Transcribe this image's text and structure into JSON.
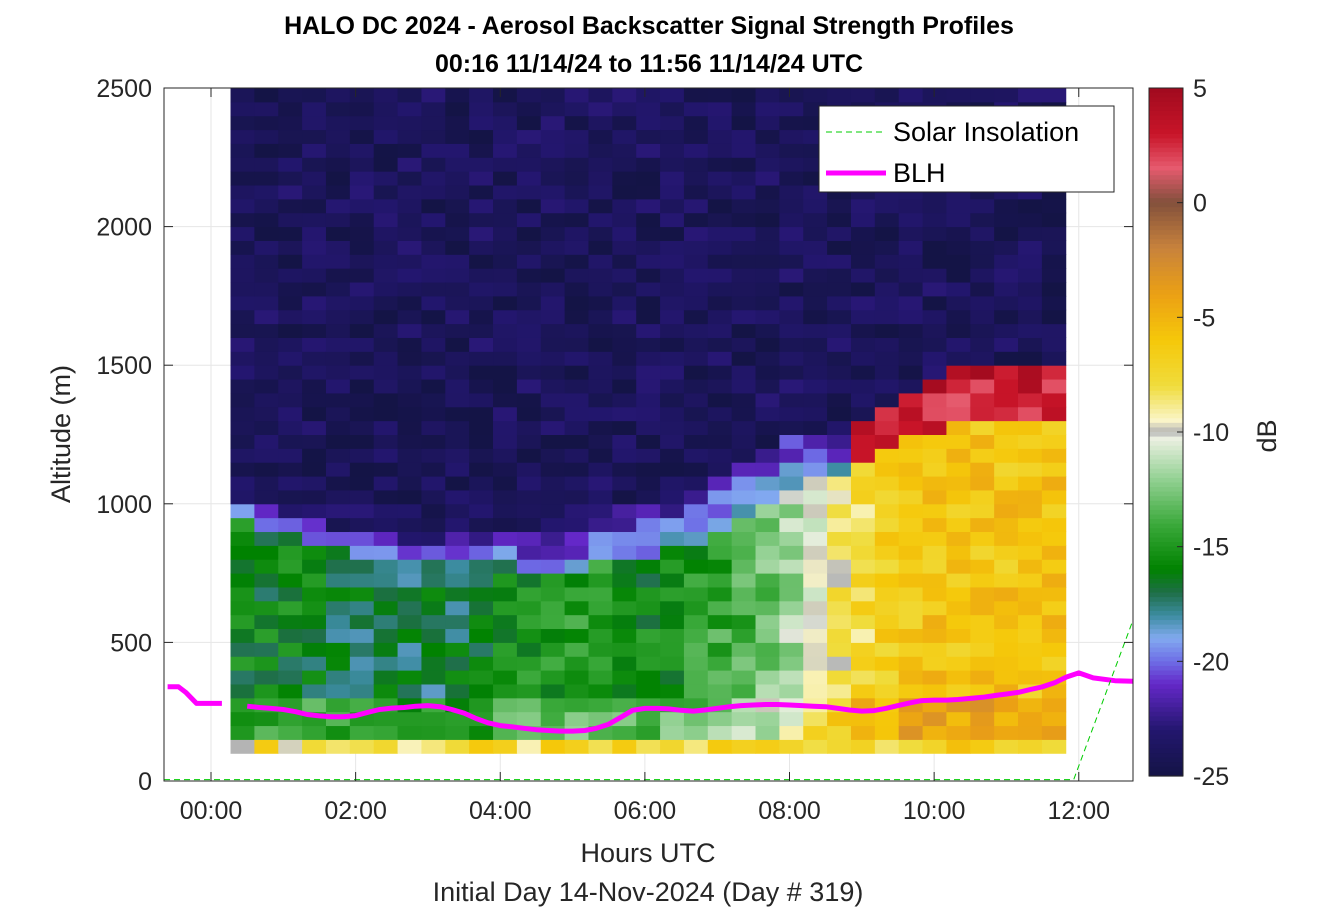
{
  "chart_data": {
    "type": "heatmap",
    "title": "HALO DC 2024 - Aerosol Backscatter Signal Strength Profiles",
    "subtitle": "00:16 11/14/24 to 11:56 11/14/24  UTC",
    "xlabel": "Hours UTC",
    "ylabel": "Altitude (m)",
    "footer": "Initial Day 14-Nov-2024 (Day # 319)",
    "xlim": [
      -0.65,
      12.75
    ],
    "ylim": [
      0,
      2500
    ],
    "x_ticks": [
      0,
      2,
      4,
      6,
      8,
      10,
      12
    ],
    "x_tick_labels": [
      "00:00",
      "02:00",
      "04:00",
      "06:00",
      "08:00",
      "10:00",
      "12:00"
    ],
    "y_ticks": [
      0,
      500,
      1000,
      1500,
      2000,
      2500
    ],
    "y_tick_labels": [
      "0",
      "500",
      "1000",
      "1500",
      "2000",
      "2500"
    ],
    "grid": true,
    "legend_position": "top-right",
    "colorbar": {
      "label": "dB",
      "range": [
        -25,
        5
      ],
      "ticks": [
        5,
        0,
        -5,
        -10,
        -15,
        -20,
        -25
      ],
      "tick_labels": [
        "5",
        "0",
        "-5",
        "-10",
        "-15",
        "-20",
        "-25"
      ]
    },
    "heatmap_extent": {
      "x_start": 0.27,
      "x_end": 11.93,
      "y_start": 100,
      "y_end": 2500
    },
    "cell_width_hours": 0.33,
    "cell_height_m": 50,
    "profiles": [
      {
        "t": 0.27,
        "blh": 1000,
        "aero": 1050,
        "bl": -16,
        "top": -24
      },
      {
        "t": 0.6,
        "blh": 920,
        "aero": 1000,
        "bl": -16,
        "top": -24
      },
      {
        "t": 1.27,
        "blh": 880,
        "aero": 960,
        "bl": -16,
        "top": -24
      },
      {
        "t": 1.93,
        "blh": 820,
        "aero": 900,
        "bl": -17,
        "top": -24
      },
      {
        "t": 2.6,
        "blh": 810,
        "aero": 880,
        "bl": -17,
        "top": -24
      },
      {
        "t": 3.27,
        "blh": 790,
        "aero": 880,
        "bl": -17,
        "top": -24
      },
      {
        "t": 3.93,
        "blh": 780,
        "aero": 900,
        "bl": -16,
        "top": -24
      },
      {
        "t": 4.6,
        "blh": 760,
        "aero": 880,
        "bl": -15,
        "top": -24
      },
      {
        "t": 5.27,
        "blh": 780,
        "aero": 940,
        "bl": -15,
        "top": -24
      },
      {
        "t": 5.93,
        "blh": 800,
        "aero": 1000,
        "bl": -16,
        "top": -24
      },
      {
        "t": 6.6,
        "blh": 850,
        "aero": 1050,
        "bl": -15,
        "top": -24
      },
      {
        "t": 7.27,
        "blh": 950,
        "aero": 1150,
        "bl": -14,
        "top": -24
      },
      {
        "t": 7.93,
        "blh": 1050,
        "aero": 1250,
        "bl": -12,
        "top": -24
      },
      {
        "t": 8.6,
        "blh": 1100,
        "aero": 1250,
        "bl": -9,
        "top": -24
      },
      {
        "t": 9.27,
        "blh": 1200,
        "aero": 1350,
        "bl": -7,
        "top": -24
      },
      {
        "t": 9.93,
        "blh": 1250,
        "aero": 1450,
        "bl": -6,
        "top": -24
      },
      {
        "t": 10.6,
        "blh": 1300,
        "aero": 1500,
        "bl": -6,
        "top": -24
      },
      {
        "t": 11.27,
        "blh": 1300,
        "aero": 1500,
        "bl": -6,
        "top": -24
      },
      {
        "t": 11.93,
        "blh": 1300,
        "aero": 1500,
        "bl": -6,
        "top": -24
      }
    ],
    "series": [
      {
        "name": "BLH",
        "color": "#ff00ff",
        "x": [
          -0.6,
          -0.45,
          -0.35,
          -0.2,
          0.15,
          0.3,
          0.5,
          0.67,
          0.83,
          1.0,
          1.17,
          1.33,
          1.5,
          1.67,
          1.83,
          2.0,
          2.17,
          2.33,
          2.5,
          2.67,
          2.83,
          3.0,
          3.17,
          3.33,
          3.5,
          3.67,
          3.83,
          4.0,
          4.17,
          4.33,
          4.5,
          4.67,
          4.83,
          5.0,
          5.17,
          5.33,
          5.5,
          5.67,
          5.83,
          6.0,
          6.17,
          6.33,
          6.5,
          6.67,
          6.83,
          7.0,
          7.17,
          7.33,
          7.5,
          7.67,
          7.83,
          8.0,
          8.17,
          8.33,
          8.5,
          8.67,
          8.83,
          9.0,
          9.17,
          9.33,
          9.5,
          9.67,
          9.83,
          10.0,
          10.17,
          10.33,
          10.5,
          10.67,
          10.83,
          11.0,
          11.17,
          11.33,
          11.5,
          11.67,
          11.83,
          12.0,
          12.2,
          12.5,
          12.75
        ],
        "y": [
          340,
          340,
          320,
          280,
          280,
          null,
          270,
          265,
          262,
          258,
          250,
          240,
          235,
          232,
          232,
          236,
          248,
          258,
          263,
          265,
          270,
          272,
          268,
          258,
          245,
          225,
          210,
          200,
          195,
          190,
          185,
          182,
          180,
          180,
          182,
          190,
          205,
          230,
          255,
          262,
          262,
          260,
          255,
          252,
          256,
          262,
          268,
          272,
          274,
          276,
          276,
          274,
          272,
          270,
          268,
          262,
          256,
          252,
          254,
          262,
          272,
          282,
          290,
          292,
          292,
          294,
          298,
          302,
          308,
          314,
          320,
          330,
          340,
          355,
          375,
          390,
          372,
          362,
          360
        ]
      },
      {
        "name": "Solar Insolation",
        "color": "#00cc00",
        "style": "dashed",
        "x": [
          -0.65,
          11.93,
          12.75
        ],
        "y": [
          5,
          5,
          580
        ]
      }
    ],
    "legend_entries": [
      "Solar Insolation",
      "BLH"
    ]
  }
}
